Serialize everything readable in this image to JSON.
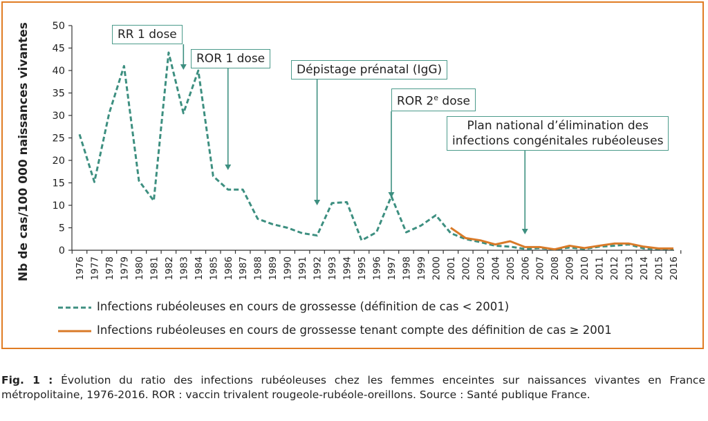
{
  "chart_data": {
    "type": "line",
    "title": "",
    "ylabel": "Nb de cas/100 000 naissances vivantes",
    "xlabel": "",
    "ylim": [
      0,
      50
    ],
    "yticks": [
      0,
      5,
      10,
      15,
      20,
      25,
      30,
      35,
      40,
      45,
      50
    ],
    "x": [
      1976,
      1977,
      1978,
      1979,
      1980,
      1981,
      1982,
      1983,
      1984,
      1985,
      1986,
      1987,
      1988,
      1989,
      1990,
      1991,
      1992,
      1993,
      1994,
      1995,
      1996,
      1997,
      1998,
      1999,
      2000,
      2001,
      2002,
      2003,
      2004,
      2005,
      2006,
      2007,
      2008,
      2009,
      2010,
      2011,
      2012,
      2013,
      2014,
      2015,
      2016
    ],
    "xtick_labels": [
      "1976",
      "1977",
      "1978",
      "1979",
      "1980",
      "1981",
      "1982",
      "1983",
      "1984",
      "1985",
      "1986",
      "1987",
      "1988",
      "1989",
      "1990",
      "1991",
      "1992",
      "1993",
      "1994",
      "1995",
      "1996",
      "1997",
      "1998",
      "1999",
      "2000",
      "2001",
      "2002",
      "2003",
      "2004",
      "2005",
      "2006",
      "2007",
      "2008",
      "2009",
      "2010",
      "2011",
      "2012",
      "2013",
      "2014",
      "2015",
      "2016"
    ],
    "grid": false,
    "legend_placement": "bottom",
    "series": [
      {
        "name": "Infections rubéoleuses en cours de grossesse (définition de cas < 2001)",
        "style": "dashed",
        "color": "#3d8f80",
        "x": [
          1976,
          1977,
          1978,
          1979,
          1980,
          1981,
          1982,
          1983,
          1984,
          1985,
          1986,
          1987,
          1988,
          1989,
          1990,
          1991,
          1992,
          1993,
          1994,
          1995,
          1996,
          1997,
          1998,
          1999,
          2000,
          2001,
          2002,
          2003,
          2004,
          2005,
          2006,
          2007,
          2008,
          2009,
          2010,
          2011,
          2012,
          2013,
          2014,
          2015,
          2016
        ],
        "values": [
          25.8,
          15.2,
          30.5,
          41,
          15.5,
          11,
          44,
          30.5,
          40,
          16.5,
          13.5,
          13.5,
          7,
          5.8,
          5,
          3.8,
          3.3,
          10.5,
          10.7,
          2.2,
          4,
          12,
          4,
          5.5,
          7.8,
          3.8,
          2.5,
          1.8,
          1,
          0.8,
          0.3,
          0.5,
          0.2,
          0.6,
          0.3,
          0.8,
          1,
          1.3,
          0.4,
          0.3,
          0.3
        ]
      },
      {
        "name": "Infections rubéoleuses en cours de grossesse tenant compte des définition de cas ≥ 2001",
        "style": "solid",
        "color": "#d97a28",
        "x": [
          2001,
          2002,
          2003,
          2004,
          2005,
          2006,
          2007,
          2008,
          2009,
          2010,
          2011,
          2012,
          2013,
          2014,
          2015,
          2016
        ],
        "values": [
          5,
          2.7,
          2.2,
          1.3,
          2,
          0.7,
          0.7,
          0.2,
          1,
          0.5,
          1,
          1.5,
          1.5,
          0.8,
          0.4,
          0.4
        ]
      }
    ],
    "annotations": [
      {
        "id": "rr1",
        "lines": [
          "RR 1 dose"
        ],
        "x": 1983
      },
      {
        "id": "ror1",
        "lines": [
          "ROR 1 dose"
        ],
        "x": 1986
      },
      {
        "id": "depistage",
        "lines": [
          "Dépistage prénatal (IgG)"
        ],
        "x": 1992
      },
      {
        "id": "ror2",
        "base": "ROR 2",
        "sup": "e",
        "rest": " dose",
        "x": 1997
      },
      {
        "id": "plan",
        "lines": [
          "Plan national d’élimination des",
          "infections congénitales rubéoleuses"
        ],
        "x": 2006
      }
    ]
  },
  "caption": {
    "label": "Fig. 1 :",
    "text": " Évolution du ratio des infections rubéoleuses chez les femmes enceintes sur naissances vivantes en France métropolitaine, 1976-2016. ROR : vaccin trivalent rougeole-rubéole-oreillons. Source : Santé publique France."
  }
}
